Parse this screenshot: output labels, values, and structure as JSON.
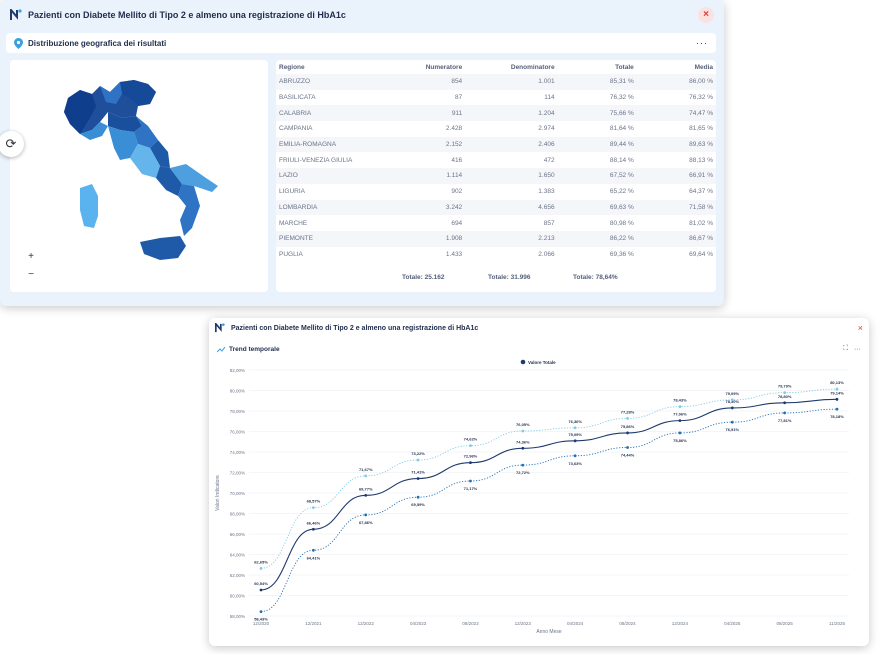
{
  "panel1": {
    "title": "Pazienti con Diabete Mellito di Tipo 2 e almeno una registrazione di HbA1c",
    "close_label": "×",
    "subtitle": "Distribuzione geografica dei risultati",
    "menu_label": "···",
    "zoom_in": "+",
    "zoom_out": "−",
    "table": {
      "headers": [
        "Regione",
        "Numeratore",
        "Denominatore",
        "Totale",
        "Media"
      ],
      "rows": [
        [
          "ABRUZZO",
          "854",
          "1.001",
          "85,31 %",
          "86,00 %"
        ],
        [
          "BASILICATA",
          "87",
          "114",
          "76,32 %",
          "76,32 %"
        ],
        [
          "CALABRIA",
          "911",
          "1.204",
          "75,66 %",
          "74,47 %"
        ],
        [
          "CAMPANIA",
          "2.428",
          "2.974",
          "81,64 %",
          "81,65 %"
        ],
        [
          "EMILIA-ROMAGNA",
          "2.152",
          "2.406",
          "89,44 %",
          "89,63 %"
        ],
        [
          "FRIULI-VENEZIA GIULIA",
          "416",
          "472",
          "88,14 %",
          "88,13 %"
        ],
        [
          "LAZIO",
          "1.114",
          "1.650",
          "67,52 %",
          "66,91 %"
        ],
        [
          "LIGURIA",
          "902",
          "1.383",
          "65,22 %",
          "64,37 %"
        ],
        [
          "LOMBARDIA",
          "3.242",
          "4.656",
          "69,63 %",
          "71,58 %"
        ],
        [
          "MARCHE",
          "694",
          "857",
          "80,98 %",
          "81,02 %"
        ],
        [
          "PIEMONTE",
          "1.908",
          "2.213",
          "86,22 %",
          "86,67 %"
        ],
        [
          "PUGLIA",
          "1.433",
          "2.066",
          "69,36 %",
          "69,64 %"
        ]
      ],
      "totals": {
        "numeratore": "Totale: 25.162",
        "denominatore": "Totale: 31.996",
        "totale": "Totale: 78,64%"
      }
    }
  },
  "panel2": {
    "title": "Pazienti con Diabete Mellito di Tipo 2 e almeno una registrazione di HbA1c",
    "close_label": "×",
    "subtitle": "Trend temporale",
    "menu_label": "···"
  },
  "chart_data": {
    "type": "line",
    "title": "",
    "legend": [
      "Valore Totale"
    ],
    "legend_position": "top-center",
    "xlabel": "Anno Mese",
    "ylabel": "Valori Indicatore",
    "x": [
      "12/2020",
      "12/2021",
      "12/2022",
      "04/2023",
      "08/2023",
      "12/2023",
      "04/2024",
      "08/2024",
      "12/2024",
      "04/2025",
      "08/2025",
      "11/2025"
    ],
    "y_ticks": [
      "58,00%",
      "60,00%",
      "62,00%",
      "64,00%",
      "66,00%",
      "68,00%",
      "70,00%",
      "72,00%",
      "74,00%",
      "76,00%",
      "78,00%",
      "80,00%",
      "82,00%"
    ],
    "ylim": [
      58,
      82
    ],
    "grid": true,
    "series": [
      {
        "name": "Valore Totale",
        "values": [
          60.54,
          66.46,
          69.77,
          71.41,
          72.96,
          74.36,
          75.09,
          75.86,
          77.06,
          78.3,
          78.8,
          79.14
        ],
        "labels": [
          "60,54%",
          "66,46%",
          "69,77%",
          "71,41%",
          "72,96%",
          "74,36%",
          "75,09%",
          "75,86%",
          "77,06%",
          "78,30%",
          "78,80%",
          "79,14%"
        ],
        "color": "#1f3a6e",
        "style": "solid"
      },
      {
        "values": [
          62.65,
          68.57,
          71.67,
          73.22,
          74.62,
          76.05,
          76.36,
          77.28,
          78.43,
          79.09,
          79.79,
          80.13
        ],
        "labels": [
          "62,65%",
          "68,57%",
          "71,67%",
          "73,22%",
          "74,62%",
          "76,05%",
          "76,36%",
          "77,28%",
          "78,43%",
          "79,09%",
          "79,79%",
          "80,13%"
        ],
        "color": "#7ecbe8",
        "style": "dotted"
      },
      {
        "values": [
          58.43,
          64.41,
          67.86,
          69.59,
          71.17,
          72.72,
          73.63,
          74.44,
          75.86,
          76.91,
          77.81,
          78.18
        ],
        "labels": [
          "58,43%",
          "64,41%",
          "67,86%",
          "69,59%",
          "71,17%",
          "72,72%",
          "73,63%",
          "74,44%",
          "75,86%",
          "76,91%",
          "77,81%",
          "78,18%"
        ],
        "color": "#1f6fb5",
        "style": "dotted"
      }
    ]
  }
}
